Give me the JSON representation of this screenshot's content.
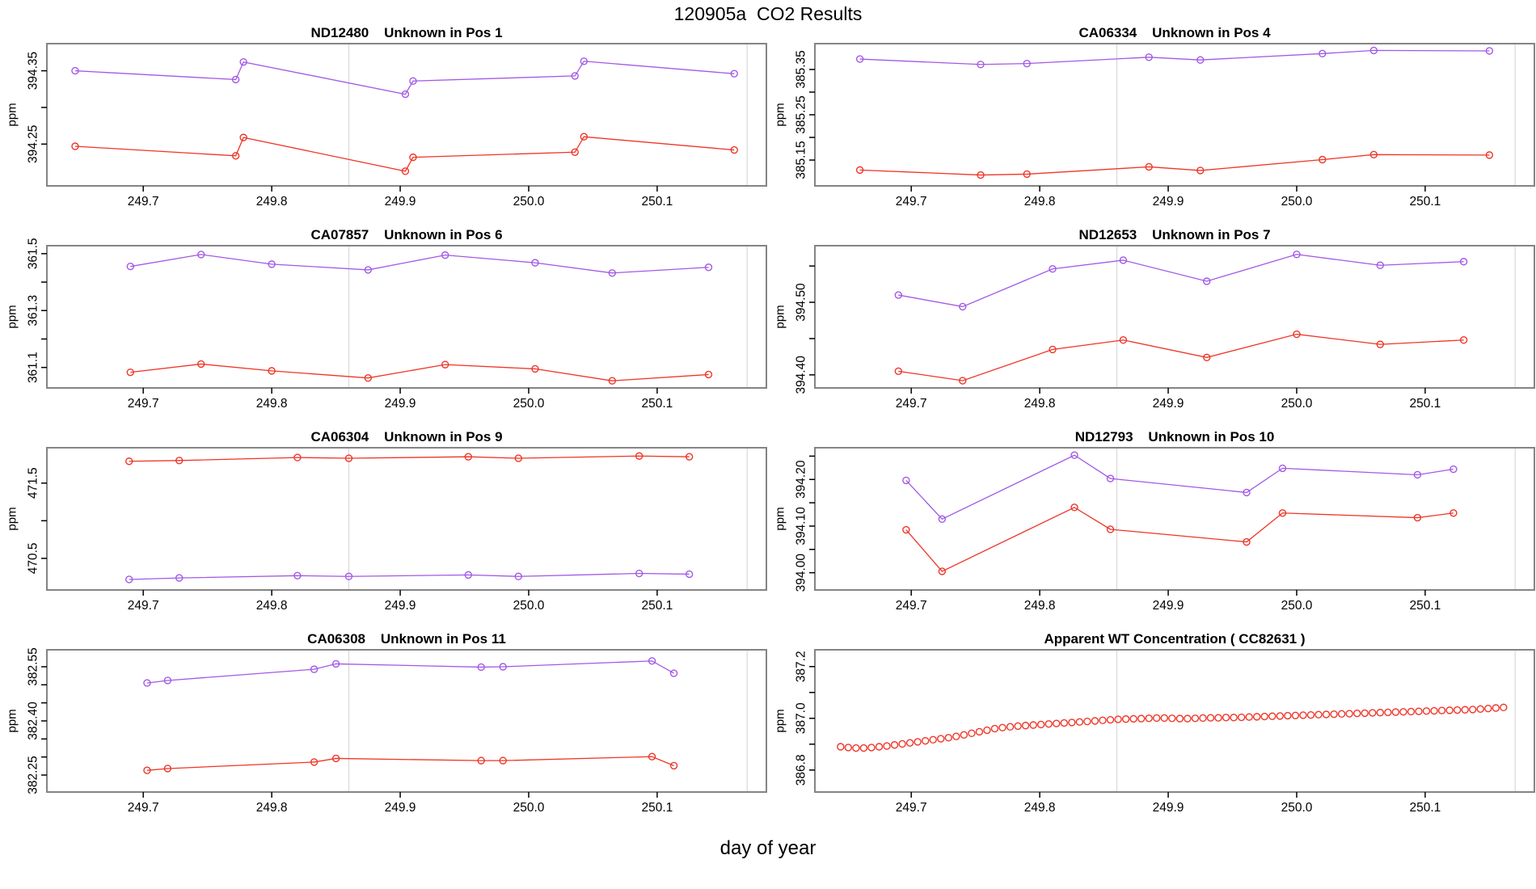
{
  "figure": {
    "title": "120905a  CO2 Results",
    "xlabel": "day of year"
  },
  "colors": {
    "red": "#ef3527",
    "purple": "#a259e6",
    "gridline": "#d9d9d9",
    "frame": "#848484",
    "tick": "#000000",
    "text": "#000000"
  },
  "x_axis": {
    "min": 249.625,
    "max": 250.185,
    "ticks": [
      {
        "v": 249.7,
        "label": "249.7"
      },
      {
        "v": 249.8,
        "label": "249.8"
      },
      {
        "v": 249.9,
        "label": "249.9"
      },
      {
        "v": 250.0,
        "label": "250.0"
      },
      {
        "v": 250.1,
        "label": "250.1"
      }
    ],
    "gridlines": [
      249.86,
      250.17
    ]
  },
  "chart_data": [
    {
      "id": "nd12480",
      "type": "line",
      "title": "ND12480    Unknown in Pos 1",
      "ylabel": "ppm",
      "ylim": [
        394.193,
        394.387
      ],
      "yticks": [
        {
          "v": 394.25,
          "label": "394.25"
        },
        {
          "v": 394.3,
          "label": ""
        },
        {
          "v": 394.35,
          "label": "394.35"
        }
      ],
      "series": [
        {
          "name": "upper-purple",
          "color_key": "purple",
          "draw_line": true,
          "x": [
            249.647,
            249.772,
            249.778,
            249.904,
            249.91,
            250.036,
            250.043,
            250.16
          ],
          "y": [
            394.35,
            394.338,
            394.362,
            394.318,
            394.336,
            394.343,
            394.363,
            394.346
          ]
        },
        {
          "name": "lower-red",
          "color_key": "red",
          "draw_line": true,
          "x": [
            249.647,
            249.772,
            249.778,
            249.904,
            249.91,
            250.036,
            250.043,
            250.16
          ],
          "y": [
            394.247,
            394.234,
            394.259,
            394.213,
            394.232,
            394.239,
            394.26,
            394.242
          ]
        }
      ]
    },
    {
      "id": "ca06334",
      "type": "line",
      "title": "CA06334    Unknown in Pos 4",
      "ylabel": "ppm",
      "ylim": [
        385.093,
        385.407
      ],
      "yticks": [
        {
          "v": 385.15,
          "label": "385.15"
        },
        {
          "v": 385.2,
          "label": ""
        },
        {
          "v": 385.25,
          "label": "385.25"
        },
        {
          "v": 385.3,
          "label": ""
        },
        {
          "v": 385.35,
          "label": "385.35"
        }
      ],
      "series": [
        {
          "name": "upper-purple",
          "color_key": "purple",
          "draw_line": true,
          "x": [
            249.66,
            249.754,
            249.79,
            249.885,
            249.925,
            250.02,
            250.06,
            250.15
          ],
          "y": [
            385.373,
            385.361,
            385.363,
            385.377,
            385.371,
            385.385,
            385.392,
            385.391
          ]
        },
        {
          "name": "lower-red",
          "color_key": "red",
          "draw_line": true,
          "x": [
            249.66,
            249.754,
            249.79,
            249.885,
            249.925,
            250.02,
            250.06,
            250.15
          ],
          "y": [
            385.128,
            385.117,
            385.119,
            385.135,
            385.127,
            385.151,
            385.162,
            385.161
          ]
        }
      ]
    },
    {
      "id": "ca07857",
      "type": "line",
      "title": "CA07857    Unknown in Pos 6",
      "ylabel": "ppm",
      "ylim": [
        361.028,
        361.528
      ],
      "yticks": [
        {
          "v": 361.1,
          "label": "361.1"
        },
        {
          "v": 361.2,
          "label": ""
        },
        {
          "v": 361.3,
          "label": "361.3"
        },
        {
          "v": 361.4,
          "label": ""
        },
        {
          "v": 361.5,
          "label": "361.5"
        }
      ],
      "series": [
        {
          "name": "upper-purple",
          "color_key": "purple",
          "draw_line": true,
          "x": [
            249.69,
            249.745,
            249.8,
            249.875,
            249.935,
            250.005,
            250.065,
            250.14
          ],
          "y": [
            361.455,
            361.497,
            361.463,
            361.443,
            361.495,
            361.468,
            361.432,
            361.452
          ]
        },
        {
          "name": "lower-red",
          "color_key": "red",
          "draw_line": true,
          "x": [
            249.69,
            249.745,
            249.8,
            249.875,
            249.935,
            250.005,
            250.065,
            250.14
          ],
          "y": [
            361.083,
            361.112,
            361.088,
            361.063,
            361.11,
            361.095,
            361.053,
            361.075
          ]
        }
      ]
    },
    {
      "id": "nd12653",
      "type": "line",
      "title": "ND12653    Unknown in Pos 7",
      "ylabel": "ppm",
      "ylim": [
        394.382,
        394.578
      ],
      "yticks": [
        {
          "v": 394.4,
          "label": "394.40"
        },
        {
          "v": 394.45,
          "label": ""
        },
        {
          "v": 394.5,
          "label": "394.50"
        },
        {
          "v": 394.55,
          "label": ""
        }
      ],
      "series": [
        {
          "name": "upper-purple",
          "color_key": "purple",
          "draw_line": true,
          "x": [
            249.69,
            249.74,
            249.81,
            249.865,
            249.93,
            250.0,
            250.065,
            250.13
          ],
          "y": [
            394.51,
            394.494,
            394.546,
            394.558,
            394.529,
            394.566,
            394.551,
            394.556
          ]
        },
        {
          "name": "lower-red",
          "color_key": "red",
          "draw_line": true,
          "x": [
            249.69,
            249.74,
            249.81,
            249.865,
            249.93,
            250.0,
            250.065,
            250.13
          ],
          "y": [
            394.405,
            394.392,
            394.435,
            394.448,
            394.424,
            394.456,
            394.442,
            394.448
          ]
        }
      ]
    },
    {
      "id": "ca06304",
      "type": "line",
      "title": "CA06304    Unknown in Pos 9",
      "ylabel": "ppm",
      "ylim": [
        470.08,
        471.97
      ],
      "yticks": [
        {
          "v": 470.5,
          "label": "470.5"
        },
        {
          "v": 471.0,
          "label": ""
        },
        {
          "v": 471.5,
          "label": "471.5"
        }
      ],
      "series": [
        {
          "name": "upper-red",
          "color_key": "red",
          "draw_line": true,
          "x": [
            249.689,
            249.728,
            249.82,
            249.86,
            249.953,
            249.992,
            250.086,
            250.125
          ],
          "y": [
            471.79,
            471.8,
            471.84,
            471.83,
            471.85,
            471.83,
            471.86,
            471.85
          ]
        },
        {
          "name": "lower-purple",
          "color_key": "purple",
          "draw_line": true,
          "x": [
            249.689,
            249.728,
            249.82,
            249.86,
            249.953,
            249.992,
            250.086,
            250.125
          ],
          "y": [
            470.22,
            470.24,
            470.27,
            470.26,
            470.28,
            470.26,
            470.3,
            470.29
          ]
        }
      ]
    },
    {
      "id": "nd12793",
      "type": "line",
      "title": "ND12793    Unknown in Pos 10",
      "ylabel": "ppm",
      "ylim": [
        393.963,
        394.268
      ],
      "yticks": [
        {
          "v": 394.0,
          "label": "394.00"
        },
        {
          "v": 394.05,
          "label": ""
        },
        {
          "v": 394.1,
          "label": "394.10"
        },
        {
          "v": 394.15,
          "label": ""
        },
        {
          "v": 394.2,
          "label": "394.20"
        },
        {
          "v": 394.25,
          "label": ""
        }
      ],
      "series": [
        {
          "name": "upper-purple",
          "color_key": "purple",
          "draw_line": true,
          "x": [
            249.696,
            249.724,
            249.827,
            249.855,
            249.961,
            249.989,
            250.094,
            250.122
          ],
          "y": [
            394.198,
            394.115,
            394.252,
            394.202,
            394.172,
            394.224,
            394.21,
            394.222
          ]
        },
        {
          "name": "lower-red",
          "color_key": "red",
          "draw_line": true,
          "x": [
            249.696,
            249.724,
            249.827,
            249.855,
            249.961,
            249.989,
            250.094,
            250.122
          ],
          "y": [
            394.092,
            394.003,
            394.14,
            394.093,
            394.066,
            394.128,
            394.118,
            394.128
          ]
        }
      ]
    },
    {
      "id": "ca06308",
      "type": "line",
      "title": "CA06308    Unknown in Pos 11",
      "ylabel": "ppm",
      "ylim": [
        382.203,
        382.597
      ],
      "yticks": [
        {
          "v": 382.25,
          "label": "382.25"
        },
        {
          "v": 382.3,
          "label": ""
        },
        {
          "v": 382.35,
          "label": ""
        },
        {
          "v": 382.4,
          "label": "382.40"
        },
        {
          "v": 382.45,
          "label": ""
        },
        {
          "v": 382.5,
          "label": ""
        },
        {
          "v": 382.55,
          "label": "382.55"
        }
      ],
      "series": [
        {
          "name": "upper-purple",
          "color_key": "purple",
          "draw_line": true,
          "x": [
            249.703,
            249.719,
            249.833,
            249.85,
            249.963,
            249.98,
            250.096,
            250.113
          ],
          "y": [
            382.505,
            382.512,
            382.543,
            382.558,
            382.549,
            382.55,
            382.566,
            382.532
          ]
        },
        {
          "name": "lower-red",
          "color_key": "red",
          "draw_line": true,
          "x": [
            249.703,
            249.719,
            249.833,
            249.85,
            249.963,
            249.98,
            250.096,
            250.113
          ],
          "y": [
            382.263,
            382.268,
            382.286,
            382.296,
            382.29,
            382.29,
            382.301,
            382.276
          ]
        }
      ]
    },
    {
      "id": "wt-cc82631",
      "type": "scatter",
      "title": "Apparent WT Concentration ( CC82631 )",
      "ylabel": "ppm",
      "ylim": [
        386.715,
        387.265
      ],
      "yticks": [
        {
          "v": 386.8,
          "label": "386.8"
        },
        {
          "v": 386.9,
          "label": ""
        },
        {
          "v": 387.0,
          "label": "387.0"
        },
        {
          "v": 387.1,
          "label": ""
        },
        {
          "v": 387.2,
          "label": "387.2"
        }
      ],
      "series": [
        {
          "name": "wt-red",
          "color_key": "red",
          "draw_line": false,
          "x_start": 249.645,
          "x_step": 0.006,
          "y": [
            386.89,
            386.887,
            386.885,
            386.885,
            386.887,
            386.89,
            386.893,
            386.897,
            386.901,
            386.905,
            386.909,
            386.913,
            386.917,
            386.921,
            386.925,
            386.93,
            386.936,
            386.942,
            386.948,
            386.954,
            386.96,
            386.964,
            386.967,
            386.97,
            386.972,
            386.974,
            386.976,
            386.978,
            386.98,
            386.982,
            386.984,
            386.986,
            386.988,
            386.99,
            386.992,
            386.994,
            386.996,
            386.997,
            386.998,
            386.999,
            387.0,
            387.001,
            387.001,
            387.0,
            386.999,
            386.999,
            387.0,
            387.001,
            387.002,
            387.002,
            387.003,
            387.003,
            387.004,
            387.005,
            387.006,
            387.007,
            387.008,
            387.009,
            387.01,
            387.011,
            387.012,
            387.013,
            387.014,
            387.015,
            387.016,
            387.017,
            387.018,
            387.019,
            387.02,
            387.021,
            387.022,
            387.023,
            387.024,
            387.025,
            387.026,
            387.027,
            387.028,
            387.029,
            387.03,
            387.031,
            387.032,
            387.033,
            387.034,
            387.036,
            387.038,
            387.04,
            387.042
          ]
        }
      ]
    }
  ]
}
